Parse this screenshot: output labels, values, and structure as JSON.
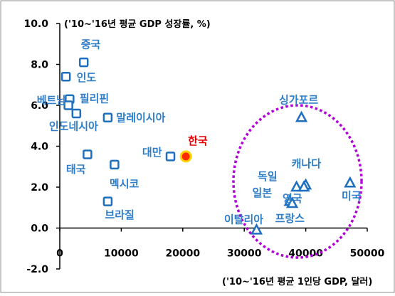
{
  "chart_data": {
    "type": "scatter",
    "title": "",
    "ylabel": "('10~'16년 평균 GDP 성장률, %)",
    "xlabel": "('10~'16년 평균 1인당 GDP, 달러)",
    "xlim": [
      0,
      50000
    ],
    "ylim": [
      -2.0,
      10.0
    ],
    "x_ticks": [
      "0",
      "10000",
      "20000",
      "30000",
      "40000",
      "50000"
    ],
    "y_ticks": [
      "10.0",
      "8.0",
      "6.0",
      "4.0",
      "2.0",
      "0.0",
      "-2.0"
    ],
    "x_tick_values": [
      0,
      10000,
      20000,
      30000,
      40000,
      50000
    ],
    "y_tick_values": [
      10,
      8,
      6,
      4,
      2,
      0,
      -2
    ],
    "grid": false,
    "highlight_annotation": "dotted ellipse around developed economies",
    "colors": {
      "axis": "#000000",
      "point": "#1f6fbf",
      "point_fill": "#ffffff",
      "label": "#2e7ec9",
      "highlight_fill": "#ff2a00",
      "highlight_stroke": "#ffd200",
      "highlight_label": "#e00000",
      "ellipse": "#b000d8"
    },
    "points": [
      {
        "name": "중국",
        "x": 3900,
        "y": 8.1,
        "marker": "square",
        "group": "emerging"
      },
      {
        "name": "인도",
        "x": 1000,
        "y": 7.4,
        "marker": "square",
        "group": "emerging"
      },
      {
        "name": "필리핀",
        "x": 1600,
        "y": 6.3,
        "marker": "square",
        "group": "emerging"
      },
      {
        "name": "베트남",
        "x": 1400,
        "y": 6.0,
        "marker": "square",
        "group": "emerging"
      },
      {
        "name": "인도네시아",
        "x": 2700,
        "y": 5.6,
        "marker": "square",
        "group": "emerging"
      },
      {
        "name": "말레이시아",
        "x": 7800,
        "y": 5.4,
        "marker": "square",
        "group": "emerging"
      },
      {
        "name": "태국",
        "x": 4500,
        "y": 3.6,
        "marker": "square",
        "group": "emerging"
      },
      {
        "name": "멕시코",
        "x": 8900,
        "y": 3.1,
        "marker": "square",
        "group": "emerging"
      },
      {
        "name": "브라질",
        "x": 7800,
        "y": 1.3,
        "marker": "square",
        "group": "emerging"
      },
      {
        "name": "대만",
        "x": 18000,
        "y": 3.5,
        "marker": "square",
        "group": "emerging"
      },
      {
        "name": "한국",
        "x": 20500,
        "y": 3.5,
        "marker": "circle",
        "group": "korea"
      },
      {
        "name": "싱가포르",
        "x": 39300,
        "y": 5.4,
        "marker": "triangle",
        "group": "developed"
      },
      {
        "name": "캐나다",
        "x": 40000,
        "y": 2.1,
        "marker": "triangle",
        "group": "developed"
      },
      {
        "name": "독일",
        "x": 38500,
        "y": 2.0,
        "marker": "triangle",
        "group": "developed"
      },
      {
        "name": "영국",
        "x": 39700,
        "y": 2.0,
        "marker": "triangle",
        "group": "developed"
      },
      {
        "name": "미국",
        "x": 47200,
        "y": 2.2,
        "marker": "triangle",
        "group": "developed"
      },
      {
        "name": "일본",
        "x": 37400,
        "y": 1.3,
        "marker": "triangle",
        "group": "developed"
      },
      {
        "name": "프랑스",
        "x": 37800,
        "y": 1.2,
        "marker": "triangle",
        "group": "developed"
      },
      {
        "name": "이탈리아",
        "x": 32000,
        "y": -0.1,
        "marker": "triangle",
        "group": "developed"
      }
    ]
  }
}
